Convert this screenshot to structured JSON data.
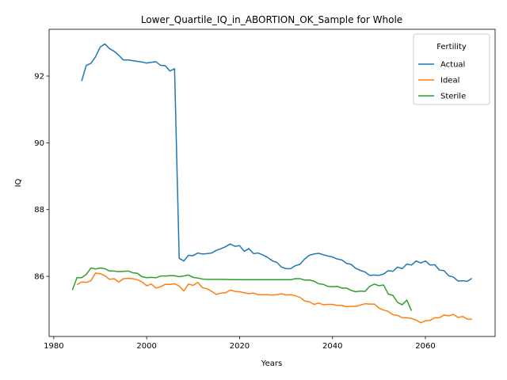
{
  "chart_data": {
    "type": "line",
    "title": "Lower_Quartile_IQ_in_ABORTION_OK_Sample for Whole",
    "xlabel": "Years",
    "ylabel": "IQ",
    "xlim": [
      1979,
      2075
    ],
    "ylim": [
      84.2,
      93.4
    ],
    "xticks": [
      1980,
      2000,
      2020,
      2040,
      2060
    ],
    "yticks": [
      86,
      88,
      90,
      92
    ],
    "grid": false,
    "legend": {
      "title": "Fertility",
      "placement": "top-right"
    },
    "series": [
      {
        "name": "Actual",
        "color": "#1f77b4",
        "points": [
          [
            1986,
            91.85
          ],
          [
            1987,
            92.32
          ],
          [
            1988,
            92.38
          ],
          [
            1989,
            92.58
          ],
          [
            1990,
            92.87
          ],
          [
            1991,
            92.96
          ],
          [
            1992,
            92.82
          ],
          [
            1993,
            92.74
          ],
          [
            1994,
            92.62
          ],
          [
            1995,
            92.48
          ],
          [
            1996,
            92.48
          ],
          [
            1997,
            92.46
          ],
          [
            1998,
            92.44
          ],
          [
            1999,
            92.42
          ],
          [
            2000,
            92.39
          ],
          [
            2001,
            92.41
          ],
          [
            2002,
            92.43
          ],
          [
            2003,
            92.32
          ],
          [
            2004,
            92.31
          ],
          [
            2005,
            92.15
          ],
          [
            2006,
            92.22
          ],
          [
            2007,
            86.54
          ],
          [
            2008,
            86.46
          ],
          [
            2009,
            86.63
          ],
          [
            2010,
            86.62
          ],
          [
            2011,
            86.7
          ],
          [
            2012,
            86.67
          ],
          [
            2013,
            86.68
          ],
          [
            2014,
            86.7
          ],
          [
            2015,
            86.78
          ],
          [
            2016,
            86.83
          ],
          [
            2017,
            86.89
          ],
          [
            2018,
            86.97
          ],
          [
            2019,
            86.9
          ],
          [
            2020,
            86.92
          ],
          [
            2021,
            86.75
          ],
          [
            2022,
            86.83
          ],
          [
            2023,
            86.68
          ],
          [
            2024,
            86.7
          ],
          [
            2025,
            86.64
          ],
          [
            2026,
            86.57
          ],
          [
            2027,
            86.47
          ],
          [
            2028,
            86.42
          ],
          [
            2029,
            86.28
          ],
          [
            2030,
            86.23
          ],
          [
            2031,
            86.23
          ],
          [
            2032,
            86.32
          ],
          [
            2033,
            86.36
          ],
          [
            2034,
            86.52
          ],
          [
            2035,
            86.63
          ],
          [
            2036,
            86.67
          ],
          [
            2037,
            86.69
          ],
          [
            2038,
            86.65
          ],
          [
            2039,
            86.61
          ],
          [
            2040,
            86.58
          ],
          [
            2041,
            86.52
          ],
          [
            2042,
            86.49
          ],
          [
            2043,
            86.39
          ],
          [
            2044,
            86.36
          ],
          [
            2045,
            86.24
          ],
          [
            2046,
            86.18
          ],
          [
            2047,
            86.13
          ],
          [
            2048,
            86.03
          ],
          [
            2049,
            86.04
          ],
          [
            2050,
            86.03
          ],
          [
            2051,
            86.07
          ],
          [
            2052,
            86.17
          ],
          [
            2053,
            86.15
          ],
          [
            2054,
            86.28
          ],
          [
            2055,
            86.23
          ],
          [
            2056,
            86.37
          ],
          [
            2057,
            86.34
          ],
          [
            2058,
            86.46
          ],
          [
            2059,
            86.4
          ],
          [
            2060,
            86.46
          ],
          [
            2061,
            86.34
          ],
          [
            2062,
            86.35
          ],
          [
            2063,
            86.19
          ],
          [
            2064,
            86.17
          ],
          [
            2065,
            86.02
          ],
          [
            2066,
            85.98
          ],
          [
            2067,
            85.86
          ],
          [
            2068,
            85.87
          ],
          [
            2069,
            85.85
          ],
          [
            2070,
            85.94
          ]
        ]
      },
      {
        "name": "Ideal",
        "color": "#ff7f0e",
        "points": [
          [
            1985,
            85.75
          ],
          [
            1986,
            85.83
          ],
          [
            1987,
            85.82
          ],
          [
            1988,
            85.87
          ],
          [
            1989,
            86.1
          ],
          [
            1990,
            86.08
          ],
          [
            1991,
            86.02
          ],
          [
            1992,
            85.91
          ],
          [
            1993,
            85.93
          ],
          [
            1994,
            85.83
          ],
          [
            1995,
            85.93
          ],
          [
            1996,
            85.94
          ],
          [
            1997,
            85.93
          ],
          [
            1998,
            85.9
          ],
          [
            1999,
            85.83
          ],
          [
            2000,
            85.72
          ],
          [
            2001,
            85.77
          ],
          [
            2002,
            85.65
          ],
          [
            2003,
            85.69
          ],
          [
            2004,
            85.76
          ],
          [
            2005,
            85.76
          ],
          [
            2006,
            85.78
          ],
          [
            2007,
            85.71
          ],
          [
            2008,
            85.56
          ],
          [
            2009,
            85.77
          ],
          [
            2010,
            85.73
          ],
          [
            2011,
            85.82
          ],
          [
            2012,
            85.66
          ],
          [
            2013,
            85.63
          ],
          [
            2014,
            85.55
          ],
          [
            2015,
            85.46
          ],
          [
            2016,
            85.5
          ],
          [
            2017,
            85.51
          ],
          [
            2018,
            85.59
          ],
          [
            2019,
            85.55
          ],
          [
            2020,
            85.54
          ],
          [
            2021,
            85.51
          ],
          [
            2022,
            85.48
          ],
          [
            2023,
            85.5
          ],
          [
            2024,
            85.45
          ],
          [
            2025,
            85.45
          ],
          [
            2026,
            85.45
          ],
          [
            2027,
            85.44
          ],
          [
            2028,
            85.45
          ],
          [
            2029,
            85.48
          ],
          [
            2030,
            85.44
          ],
          [
            2031,
            85.45
          ],
          [
            2032,
            85.42
          ],
          [
            2033,
            85.37
          ],
          [
            2034,
            85.26
          ],
          [
            2035,
            85.24
          ],
          [
            2036,
            85.16
          ],
          [
            2037,
            85.2
          ],
          [
            2038,
            85.15
          ],
          [
            2039,
            85.16
          ],
          [
            2040,
            85.16
          ],
          [
            2041,
            85.13
          ],
          [
            2042,
            85.13
          ],
          [
            2043,
            85.09
          ],
          [
            2044,
            85.1
          ],
          [
            2045,
            85.1
          ],
          [
            2046,
            85.14
          ],
          [
            2047,
            85.18
          ],
          [
            2048,
            85.17
          ],
          [
            2049,
            85.17
          ],
          [
            2050,
            85.05
          ],
          [
            2051,
            84.99
          ],
          [
            2052,
            84.95
          ],
          [
            2053,
            84.85
          ],
          [
            2054,
            84.83
          ],
          [
            2055,
            84.76
          ],
          [
            2056,
            84.76
          ],
          [
            2057,
            84.74
          ],
          [
            2058,
            84.69
          ],
          [
            2059,
            84.61
          ],
          [
            2060,
            84.67
          ],
          [
            2061,
            84.68
          ],
          [
            2062,
            84.76
          ],
          [
            2063,
            84.76
          ],
          [
            2064,
            84.84
          ],
          [
            2065,
            84.82
          ],
          [
            2066,
            84.86
          ],
          [
            2067,
            84.77
          ],
          [
            2068,
            84.8
          ],
          [
            2069,
            84.72
          ],
          [
            2070,
            84.72
          ]
        ]
      },
      {
        "name": "Sterile",
        "color": "#2ca02c",
        "points": [
          [
            1984,
            85.59
          ],
          [
            1985,
            85.96
          ],
          [
            1986,
            85.96
          ],
          [
            1987,
            86.06
          ],
          [
            1988,
            86.25
          ],
          [
            1989,
            86.22
          ],
          [
            1990,
            86.25
          ],
          [
            1991,
            86.23
          ],
          [
            1992,
            86.16
          ],
          [
            1993,
            86.16
          ],
          [
            1994,
            86.14
          ],
          [
            1995,
            86.15
          ],
          [
            1996,
            86.16
          ],
          [
            1997,
            86.11
          ],
          [
            1998,
            86.09
          ],
          [
            1999,
            85.99
          ],
          [
            2000,
            85.96
          ],
          [
            2001,
            85.97
          ],
          [
            2002,
            85.96
          ],
          [
            2003,
            86.01
          ],
          [
            2004,
            86.01
          ],
          [
            2005,
            86.02
          ],
          [
            2006,
            86.02
          ],
          [
            2007,
            85.99
          ],
          [
            2008,
            86.01
          ],
          [
            2009,
            86.04
          ],
          [
            2010,
            85.97
          ],
          [
            2011,
            85.95
          ],
          [
            2012,
            85.92
          ],
          [
            2013,
            85.91
          ],
          [
            2014,
            85.91
          ],
          [
            2015,
            85.91
          ],
          [
            2016,
            85.91
          ],
          [
            2017,
            85.91
          ],
          [
            2018,
            85.9
          ],
          [
            2019,
            85.9
          ],
          [
            2020,
            85.9
          ],
          [
            2021,
            85.9
          ],
          [
            2022,
            85.9
          ],
          [
            2023,
            85.9
          ],
          [
            2024,
            85.9
          ],
          [
            2025,
            85.9
          ],
          [
            2026,
            85.9
          ],
          [
            2027,
            85.9
          ],
          [
            2028,
            85.9
          ],
          [
            2029,
            85.9
          ],
          [
            2030,
            85.9
          ],
          [
            2031,
            85.9
          ],
          [
            2032,
            85.93
          ],
          [
            2033,
            85.93
          ],
          [
            2034,
            85.89
          ],
          [
            2035,
            85.89
          ],
          [
            2036,
            85.86
          ],
          [
            2037,
            85.78
          ],
          [
            2038,
            85.76
          ],
          [
            2039,
            85.7
          ],
          [
            2040,
            85.69
          ],
          [
            2041,
            85.7
          ],
          [
            2042,
            85.65
          ],
          [
            2043,
            85.65
          ],
          [
            2044,
            85.58
          ],
          [
            2045,
            85.54
          ],
          [
            2046,
            85.56
          ],
          [
            2047,
            85.55
          ],
          [
            2048,
            85.7
          ],
          [
            2049,
            85.77
          ],
          [
            2050,
            85.72
          ],
          [
            2051,
            85.74
          ],
          [
            2052,
            85.47
          ],
          [
            2053,
            85.43
          ],
          [
            2054,
            85.22
          ],
          [
            2055,
            85.15
          ],
          [
            2056,
            85.29
          ],
          [
            2057,
            84.97
          ]
        ]
      }
    ]
  }
}
